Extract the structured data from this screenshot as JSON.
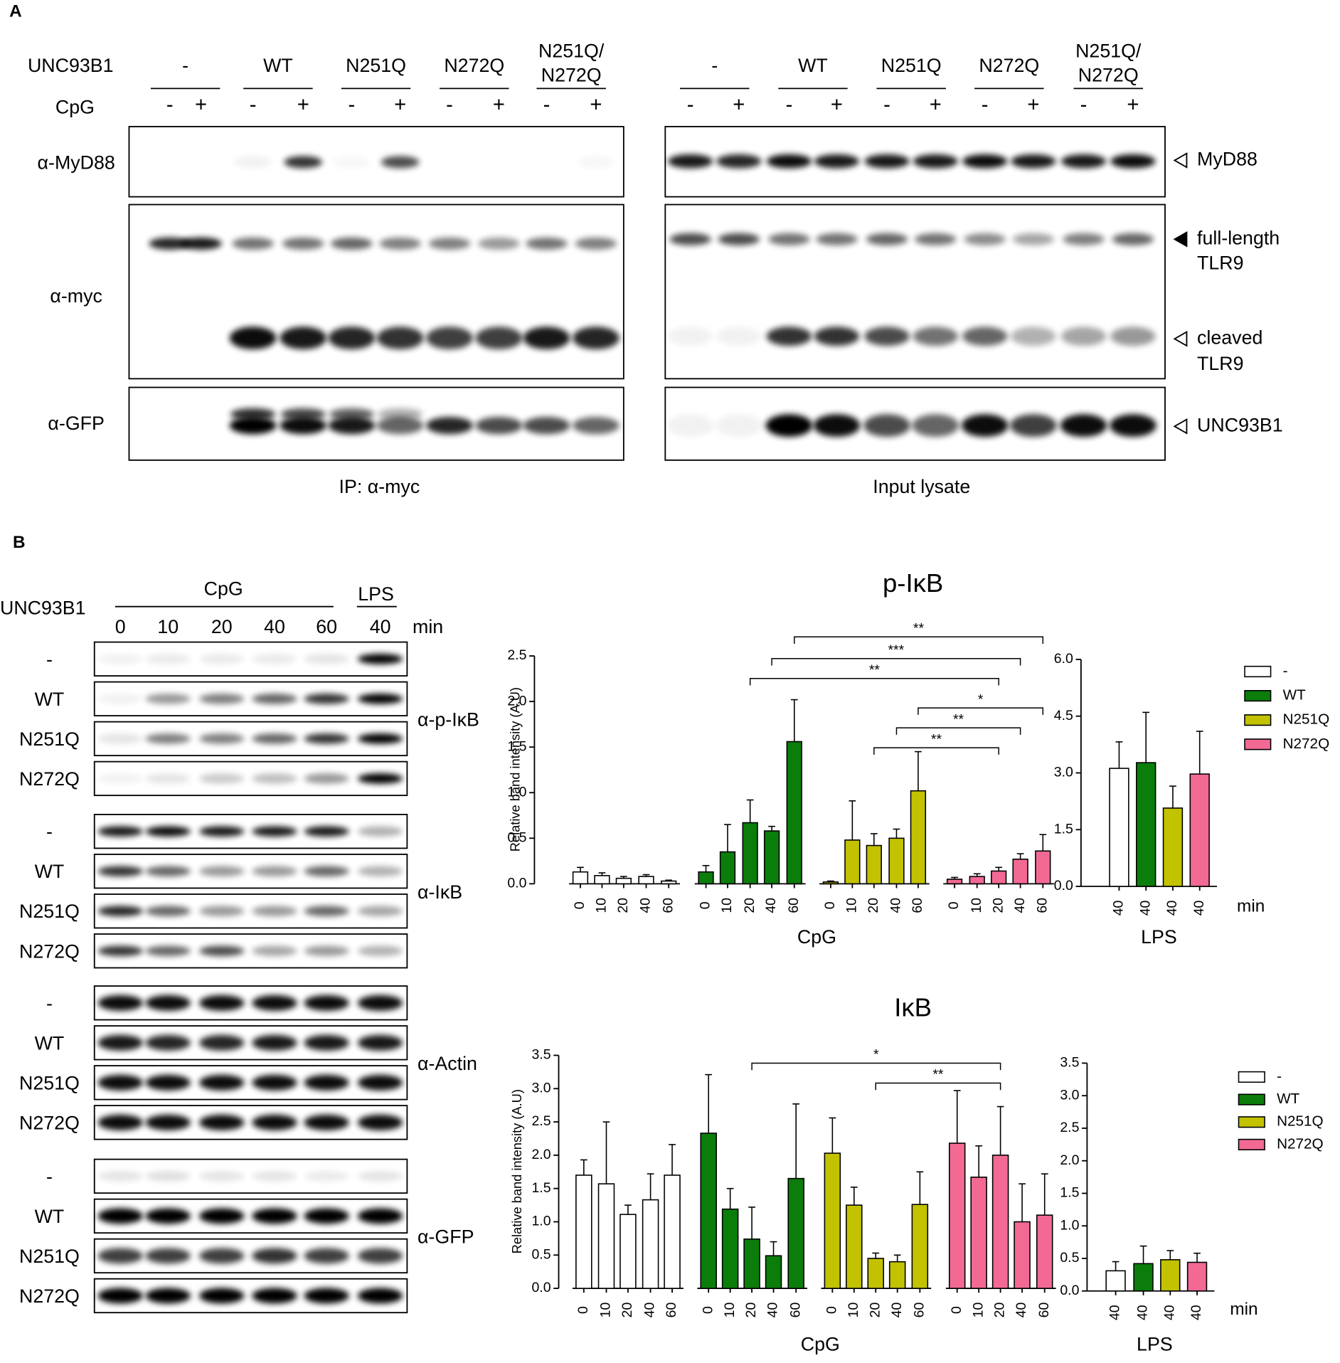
{
  "panel_a": {
    "label": "A",
    "row_label": "UNC93B1",
    "treatment_label": "CpG",
    "groups": [
      [
        "-"
      ],
      [
        "WT"
      ],
      [
        "N251Q"
      ],
      [
        "N272Q"
      ],
      [
        "N251Q/",
        "N272Q"
      ]
    ],
    "signs": [
      "-",
      "+"
    ],
    "antibodies": [
      "α-MyD88",
      "α-myc",
      "α-GFP"
    ],
    "bands": [
      [
        "MyD88"
      ],
      [
        "full-length",
        "TLR9"
      ],
      [
        "cleaved",
        "TLR9"
      ],
      [
        "UNC93B1"
      ]
    ],
    "captions": [
      "IP: α-myc",
      "Input lysate"
    ]
  },
  "panel_b": {
    "label": "B",
    "row_label": "UNC93B1",
    "cpg_label": "CpG",
    "lps_label": "LPS",
    "times": [
      "0",
      "10",
      "20",
      "40",
      "60"
    ],
    "lps_time": "40",
    "unit": "min",
    "rows": [
      "-",
      "WT",
      "N251Q",
      "N272Q"
    ],
    "antibodies": [
      "α-p-IκB",
      "α-IκB",
      "α-Actin",
      "α-GFP"
    ]
  },
  "chart_data": [
    {
      "type": "bar",
      "title": "p-IκB",
      "y_label": "Relative band intensity  (A.U)",
      "x_label": "CpG",
      "categories": [
        "0",
        "10",
        "20",
        "40",
        "60"
      ],
      "ylim": [
        0,
        2.5
      ],
      "yticks": [
        {
          "value": 0,
          "label": "0.0"
        },
        0.5,
        {
          "value": 1,
          "label": "1.0"
        },
        1.5,
        {
          "value": 2,
          "label": "2.0"
        },
        2.5
      ],
      "series": [
        {
          "name": "-",
          "color": "#ffffff",
          "values": [
            0.13,
            0.09,
            0.06,
            0.08,
            0.03
          ],
          "errors": [
            0.05,
            0.03,
            0.02,
            0.02,
            0.01
          ]
        },
        {
          "name": "WT",
          "color": "#0b7d0b",
          "values": [
            0.13,
            0.35,
            0.67,
            0.58,
            1.56
          ],
          "errors": [
            0.07,
            0.3,
            0.25,
            0.05,
            0.46
          ]
        },
        {
          "name": "N251Q",
          "color": "#c2c200",
          "values": [
            0.02,
            0.48,
            0.42,
            0.5,
            1.02
          ],
          "errors": [
            0.01,
            0.43,
            0.13,
            0.1,
            0.43
          ]
        },
        {
          "name": "N272Q",
          "color": "#f26a93",
          "values": [
            0.05,
            0.08,
            0.14,
            0.27,
            0.36
          ],
          "errors": [
            0.02,
            0.03,
            0.04,
            0.06,
            0.18
          ]
        }
      ],
      "brackets": [
        {
          "label": "**"
        },
        {
          "label": "***"
        },
        {
          "label": "**"
        },
        {
          "label": "*"
        },
        {
          "label": "**"
        },
        {
          "label": "**"
        }
      ]
    },
    {
      "type": "bar",
      "x_label": "LPS",
      "x_unit": "min",
      "categories": [
        "40"
      ],
      "ylim": [
        0,
        6
      ],
      "yticks": [
        {
          "value": 0,
          "label": "0.0"
        },
        1.5,
        {
          "value": 3,
          "label": "3.0"
        },
        4.5,
        {
          "value": 6,
          "label": "6.0"
        }
      ],
      "legend": true,
      "series": [
        {
          "name": "-",
          "color": "#ffffff",
          "values": [
            3.12
          ],
          "errors": [
            0.7
          ]
        },
        {
          "name": "WT",
          "color": "#0b7d0b",
          "values": [
            3.27
          ],
          "errors": [
            1.33
          ]
        },
        {
          "name": "N251Q",
          "color": "#c2c200",
          "values": [
            2.07
          ],
          "errors": [
            0.58
          ]
        },
        {
          "name": "N272Q",
          "color": "#f26a93",
          "values": [
            2.97
          ],
          "errors": [
            1.13
          ]
        }
      ]
    },
    {
      "type": "bar",
      "title": "IκB",
      "y_label": "Relative band intensity  (A.U)",
      "x_label": "CpG",
      "categories": [
        "0",
        "10",
        "20",
        "40",
        "60"
      ],
      "ylim": [
        0,
        3.5
      ],
      "yticks": [
        {
          "value": 0,
          "label": "0.0"
        },
        0.5,
        {
          "value": 1,
          "label": "1.0"
        },
        1.5,
        {
          "value": 2,
          "label": "2.0"
        },
        2.5,
        {
          "value": 3,
          "label": "3.0"
        },
        3.5
      ],
      "series": [
        {
          "name": "-",
          "color": "#ffffff",
          "values": [
            1.7,
            1.57,
            1.11,
            1.33,
            1.7
          ],
          "errors": [
            0.23,
            0.93,
            0.14,
            0.39,
            0.46
          ]
        },
        {
          "name": "WT",
          "color": "#0b7d0b",
          "values": [
            2.33,
            1.19,
            0.74,
            0.49,
            1.65
          ],
          "errors": [
            0.88,
            0.31,
            0.48,
            0.21,
            1.12
          ]
        },
        {
          "name": "N251Q",
          "color": "#c2c200",
          "values": [
            2.03,
            1.25,
            0.45,
            0.4,
            1.26
          ],
          "errors": [
            0.53,
            0.27,
            0.08,
            0.1,
            0.49
          ]
        },
        {
          "name": "N272Q",
          "color": "#f26a93",
          "values": [
            2.18,
            1.67,
            2.0,
            1.0,
            1.1
          ],
          "errors": [
            0.79,
            0.47,
            0.73,
            0.57,
            0.62
          ]
        }
      ],
      "brackets": [
        {
          "label": "*"
        },
        {
          "label": "**"
        }
      ]
    },
    {
      "type": "bar",
      "x_label": "LPS",
      "x_unit": "min",
      "categories": [
        "40"
      ],
      "ylim": [
        0,
        3.5
      ],
      "yticks": [
        {
          "value": 0,
          "label": "0.0"
        },
        0.5,
        {
          "value": 1,
          "label": "1.0"
        },
        1.5,
        {
          "value": 2,
          "label": "2.0"
        },
        2.5,
        {
          "value": 3,
          "label": "3.0"
        },
        3.5
      ],
      "legend": true,
      "series": [
        {
          "name": "-",
          "color": "#ffffff",
          "values": [
            0.31
          ],
          "errors": [
            0.14
          ]
        },
        {
          "name": "WT",
          "color": "#0b7d0b",
          "values": [
            0.42
          ],
          "errors": [
            0.27
          ]
        },
        {
          "name": "N251Q",
          "color": "#c2c200",
          "values": [
            0.48
          ],
          "errors": [
            0.14
          ]
        },
        {
          "name": "N272Q",
          "color": "#f26a93",
          "values": [
            0.44
          ],
          "errors": [
            0.14
          ]
        }
      ]
    }
  ]
}
